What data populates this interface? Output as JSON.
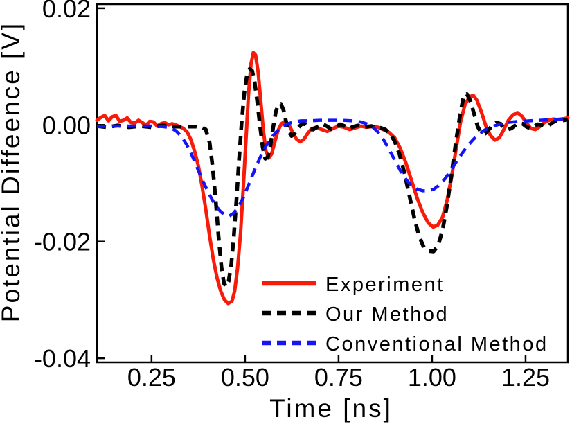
{
  "figure": {
    "background": "#ffffff",
    "frame_color": "#000000"
  },
  "chart_data": {
    "type": "line",
    "title": "",
    "xlabel": "Time [ns]",
    "ylabel": "Potential Diffeence [V]",
    "xlim": [
      0.104,
      1.363
    ],
    "ylim": [
      -0.0407,
      0.0207
    ],
    "x_ticks": [
      0.25,
      0.5,
      0.75,
      1.0,
      1.25
    ],
    "x_tick_labels": [
      "0.25",
      "0.50",
      "0.75",
      "1.00",
      "1.25"
    ],
    "y_ticks": [
      0.02,
      0.0,
      -0.02,
      -0.04
    ],
    "y_tick_labels": [
      "0.02",
      "0.00",
      "-0.02",
      "-0.04"
    ],
    "grid": false,
    "legend_position": "inside lower right",
    "series": [
      {
        "name": "Experiment",
        "color": "#f81b0a",
        "style": "solid",
        "points": [
          [
            0.104,
            0.0008
          ],
          [
            0.115,
            0.0013
          ],
          [
            0.125,
            0.0016
          ],
          [
            0.135,
            0.0007
          ],
          [
            0.145,
            0.0014
          ],
          [
            0.155,
            0.0016
          ],
          [
            0.165,
            0.0006
          ],
          [
            0.175,
            0.0008
          ],
          [
            0.185,
            0.0012
          ],
          [
            0.195,
            0.0004
          ],
          [
            0.205,
            0.0003
          ],
          [
            0.215,
            0.0008
          ],
          [
            0.225,
            0.0004
          ],
          [
            0.235,
            -0.0001
          ],
          [
            0.245,
            0.0006
          ],
          [
            0.255,
            0.0005
          ],
          [
            0.265,
            -0.0002
          ],
          [
            0.275,
            0.0002
          ],
          [
            0.285,
            0.0004
          ],
          [
            0.295,
            0.0
          ],
          [
            0.305,
            0.0002
          ],
          [
            0.315,
            0.0
          ],
          [
            0.325,
            -0.0003
          ],
          [
            0.335,
            -0.0006
          ],
          [
            0.345,
            -0.0012
          ],
          [
            0.355,
            -0.0025
          ],
          [
            0.365,
            -0.0045
          ],
          [
            0.375,
            -0.007
          ],
          [
            0.385,
            -0.0105
          ],
          [
            0.395,
            -0.0145
          ],
          [
            0.405,
            -0.019
          ],
          [
            0.415,
            -0.023
          ],
          [
            0.425,
            -0.0262
          ],
          [
            0.435,
            -0.0285
          ],
          [
            0.445,
            -0.03
          ],
          [
            0.455,
            -0.0306
          ],
          [
            0.465,
            -0.0302
          ],
          [
            0.472,
            -0.0285
          ],
          [
            0.48,
            -0.0245
          ],
          [
            0.488,
            -0.0185
          ],
          [
            0.495,
            -0.011
          ],
          [
            0.502,
            -0.003
          ],
          [
            0.509,
            0.005
          ],
          [
            0.516,
            0.0105
          ],
          [
            0.522,
            0.0124
          ],
          [
            0.528,
            0.012
          ],
          [
            0.535,
            0.009
          ],
          [
            0.542,
            0.004
          ],
          [
            0.549,
            -0.001
          ],
          [
            0.556,
            -0.0045
          ],
          [
            0.563,
            -0.0057
          ],
          [
            0.571,
            -0.005
          ],
          [
            0.579,
            -0.003
          ],
          [
            0.588,
            -0.001
          ],
          [
            0.597,
            0.0002
          ],
          [
            0.607,
            0.0006
          ],
          [
            0.617,
            0.0
          ],
          [
            0.627,
            -0.0012
          ],
          [
            0.637,
            -0.0024
          ],
          [
            0.647,
            -0.0029
          ],
          [
            0.657,
            -0.0025
          ],
          [
            0.667,
            -0.0015
          ],
          [
            0.677,
            -0.0007
          ],
          [
            0.69,
            -0.0004
          ],
          [
            0.705,
            -0.0008
          ],
          [
            0.72,
            -0.0011
          ],
          [
            0.735,
            -0.0006
          ],
          [
            0.75,
            -0.0002
          ],
          [
            0.765,
            -0.0004
          ],
          [
            0.78,
            -0.0008
          ],
          [
            0.795,
            -0.0005
          ],
          [
            0.81,
            -0.0002
          ],
          [
            0.825,
            -0.0004
          ],
          [
            0.84,
            -0.0003
          ],
          [
            0.855,
            -0.0004
          ],
          [
            0.87,
            -0.0008
          ],
          [
            0.885,
            -0.0013
          ],
          [
            0.9,
            -0.0022
          ],
          [
            0.915,
            -0.004
          ],
          [
            0.93,
            -0.0065
          ],
          [
            0.945,
            -0.0095
          ],
          [
            0.96,
            -0.0125
          ],
          [
            0.975,
            -0.015
          ],
          [
            0.99,
            -0.0168
          ],
          [
            1.003,
            -0.0175
          ],
          [
            1.015,
            -0.0172
          ],
          [
            1.028,
            -0.0158
          ],
          [
            1.04,
            -0.013
          ],
          [
            1.052,
            -0.009
          ],
          [
            1.064,
            -0.0042
          ],
          [
            1.076,
            0.0005
          ],
          [
            1.088,
            0.0035
          ],
          [
            1.1,
            0.0048
          ],
          [
            1.11,
            0.0051
          ],
          [
            1.12,
            0.0042
          ],
          [
            1.132,
            0.0022
          ],
          [
            1.144,
            -0.0002
          ],
          [
            1.156,
            -0.0018
          ],
          [
            1.168,
            -0.0026
          ],
          [
            1.18,
            -0.0022
          ],
          [
            1.192,
            -0.0008
          ],
          [
            1.204,
            0.0008
          ],
          [
            1.216,
            0.0017
          ],
          [
            1.228,
            0.0021
          ],
          [
            1.24,
            0.0015
          ],
          [
            1.252,
            0.0004
          ],
          [
            1.264,
            -0.0006
          ],
          [
            1.276,
            -0.0008
          ],
          [
            1.288,
            -0.0003
          ],
          [
            1.3,
            0.0004
          ],
          [
            1.312,
            0.0008
          ],
          [
            1.324,
            0.001
          ],
          [
            1.336,
            0.0009
          ],
          [
            1.348,
            0.001
          ],
          [
            1.363,
            0.0012
          ]
        ]
      },
      {
        "name": "Our Method",
        "color": "#000000",
        "style": "dashed",
        "points": [
          [
            0.104,
            -0.0002
          ],
          [
            0.13,
            -0.0004
          ],
          [
            0.16,
            -0.0001
          ],
          [
            0.19,
            -0.0004
          ],
          [
            0.22,
            -0.0002
          ],
          [
            0.25,
            -0.0004
          ],
          [
            0.28,
            -0.0001
          ],
          [
            0.31,
            -0.0003
          ],
          [
            0.34,
            -0.0003
          ],
          [
            0.37,
            -0.0003
          ],
          [
            0.385,
            -0.0004
          ],
          [
            0.395,
            -0.0008
          ],
          [
            0.405,
            -0.003
          ],
          [
            0.413,
            -0.007
          ],
          [
            0.421,
            -0.0125
          ],
          [
            0.429,
            -0.019
          ],
          [
            0.437,
            -0.0245
          ],
          [
            0.444,
            -0.0272
          ],
          [
            0.45,
            -0.0277
          ],
          [
            0.456,
            -0.0268
          ],
          [
            0.463,
            -0.024
          ],
          [
            0.47,
            -0.019
          ],
          [
            0.477,
            -0.0128
          ],
          [
            0.484,
            -0.006
          ],
          [
            0.491,
            0.0005
          ],
          [
            0.498,
            0.0055
          ],
          [
            0.505,
            0.0085
          ],
          [
            0.512,
            0.0096
          ],
          [
            0.519,
            0.0093
          ],
          [
            0.526,
            0.0072
          ],
          [
            0.533,
            0.0038
          ],
          [
            0.54,
            -0.0002
          ],
          [
            0.547,
            -0.0038
          ],
          [
            0.554,
            -0.0058
          ],
          [
            0.561,
            -0.0055
          ],
          [
            0.568,
            -0.0035
          ],
          [
            0.575,
            -0.0005
          ],
          [
            0.582,
            0.0022
          ],
          [
            0.589,
            0.0035
          ],
          [
            0.596,
            0.0036
          ],
          [
            0.603,
            0.0025
          ],
          [
            0.61,
            0.0005
          ],
          [
            0.617,
            -0.0012
          ],
          [
            0.624,
            -0.0019
          ],
          [
            0.632,
            -0.0015
          ],
          [
            0.642,
            -0.0005
          ],
          [
            0.652,
            0.0002
          ],
          [
            0.662,
            0.0001
          ],
          [
            0.672,
            -0.0006
          ],
          [
            0.682,
            -0.0008
          ],
          [
            0.694,
            -0.0003
          ],
          [
            0.706,
            0.0002
          ],
          [
            0.718,
            -0.0002
          ],
          [
            0.73,
            -0.0007
          ],
          [
            0.742,
            -0.0004
          ],
          [
            0.754,
            0.0001
          ],
          [
            0.766,
            -0.0002
          ],
          [
            0.778,
            -0.0006
          ],
          [
            0.79,
            -0.0003
          ],
          [
            0.802,
            -0.0001
          ],
          [
            0.814,
            -0.0004
          ],
          [
            0.826,
            -0.0003
          ],
          [
            0.838,
            -0.0002
          ],
          [
            0.85,
            -0.0005
          ],
          [
            0.862,
            -0.0005
          ],
          [
            0.875,
            -0.0008
          ],
          [
            0.888,
            -0.0015
          ],
          [
            0.9,
            -0.0028
          ],
          [
            0.913,
            -0.005
          ],
          [
            0.926,
            -0.0082
          ],
          [
            0.939,
            -0.012
          ],
          [
            0.952,
            -0.0158
          ],
          [
            0.965,
            -0.019
          ],
          [
            0.978,
            -0.021
          ],
          [
            0.991,
            -0.0216
          ],
          [
            1.004,
            -0.0217
          ],
          [
            1.016,
            -0.0207
          ],
          [
            1.028,
            -0.018
          ],
          [
            1.04,
            -0.0138
          ],
          [
            1.052,
            -0.0085
          ],
          [
            1.064,
            -0.0028
          ],
          [
            1.076,
            0.0022
          ],
          [
            1.085,
            0.005
          ],
          [
            1.093,
            0.0053
          ],
          [
            1.102,
            0.0042
          ],
          [
            1.112,
            0.002
          ],
          [
            1.122,
            -0.0003
          ],
          [
            1.132,
            -0.0014
          ],
          [
            1.142,
            -0.0015
          ],
          [
            1.152,
            -0.0008
          ],
          [
            1.162,
            0.0
          ],
          [
            1.172,
            0.0004
          ],
          [
            1.182,
            0.0002
          ],
          [
            1.192,
            -0.0004
          ],
          [
            1.202,
            -0.0008
          ],
          [
            1.212,
            -0.0006
          ],
          [
            1.222,
            -0.0001
          ],
          [
            1.232,
            0.0003
          ],
          [
            1.242,
            0.0002
          ],
          [
            1.252,
            -0.0003
          ],
          [
            1.262,
            -0.0006
          ],
          [
            1.272,
            -0.0003
          ],
          [
            1.282,
            0.0001
          ],
          [
            1.292,
            0.0
          ],
          [
            1.302,
            -0.0003
          ],
          [
            1.312,
            -0.0001
          ],
          [
            1.322,
            0.0004
          ],
          [
            1.332,
            0.0007
          ],
          [
            1.342,
            0.0008
          ],
          [
            1.352,
            0.0008
          ],
          [
            1.363,
            0.0009
          ]
        ]
      },
      {
        "name": "Conventional Method",
        "color": "#1414f5",
        "style": "dashed",
        "points": [
          [
            0.104,
            -0.0003
          ],
          [
            0.15,
            -0.0002
          ],
          [
            0.2,
            -0.0002
          ],
          [
            0.25,
            -0.0002
          ],
          [
            0.28,
            -0.0003
          ],
          [
            0.3,
            -0.0005
          ],
          [
            0.315,
            -0.001
          ],
          [
            0.33,
            -0.002
          ],
          [
            0.345,
            -0.0035
          ],
          [
            0.36,
            -0.0055
          ],
          [
            0.375,
            -0.0078
          ],
          [
            0.39,
            -0.01
          ],
          [
            0.405,
            -0.012
          ],
          [
            0.42,
            -0.0137
          ],
          [
            0.435,
            -0.0149
          ],
          [
            0.448,
            -0.0155
          ],
          [
            0.458,
            -0.0156
          ],
          [
            0.468,
            -0.0152
          ],
          [
            0.48,
            -0.0143
          ],
          [
            0.495,
            -0.0125
          ],
          [
            0.51,
            -0.0102
          ],
          [
            0.525,
            -0.0078
          ],
          [
            0.54,
            -0.0056
          ],
          [
            0.555,
            -0.0037
          ],
          [
            0.57,
            -0.0022
          ],
          [
            0.585,
            -0.0011
          ],
          [
            0.6,
            -0.0003
          ],
          [
            0.615,
            0.0002
          ],
          [
            0.63,
            0.0005
          ],
          [
            0.65,
            0.0007
          ],
          [
            0.67,
            0.0007
          ],
          [
            0.7,
            0.0008
          ],
          [
            0.73,
            0.0008
          ],
          [
            0.76,
            0.0008
          ],
          [
            0.79,
            0.0007
          ],
          [
            0.81,
            0.0005
          ],
          [
            0.825,
            0.0002
          ],
          [
            0.84,
            -0.0003
          ],
          [
            0.855,
            -0.0012
          ],
          [
            0.87,
            -0.0025
          ],
          [
            0.885,
            -0.0042
          ],
          [
            0.9,
            -0.006
          ],
          [
            0.915,
            -0.0078
          ],
          [
            0.93,
            -0.0093
          ],
          [
            0.945,
            -0.0104
          ],
          [
            0.96,
            -0.011
          ],
          [
            0.975,
            -0.0113
          ],
          [
            0.99,
            -0.0113
          ],
          [
            1.005,
            -0.011
          ],
          [
            1.02,
            -0.0103
          ],
          [
            1.035,
            -0.0092
          ],
          [
            1.05,
            -0.0078
          ],
          [
            1.065,
            -0.0063
          ],
          [
            1.08,
            -0.0049
          ],
          [
            1.095,
            -0.0036
          ],
          [
            1.11,
            -0.0025
          ],
          [
            1.125,
            -0.0016
          ],
          [
            1.14,
            -0.0009
          ],
          [
            1.155,
            -0.0004
          ],
          [
            1.17,
            -0.0001
          ],
          [
            1.185,
            0.0002
          ],
          [
            1.2,
            0.0004
          ],
          [
            1.23,
            0.0006
          ],
          [
            1.26,
            0.0007
          ],
          [
            1.29,
            0.0008
          ],
          [
            1.32,
            0.0009
          ],
          [
            1.345,
            0.001
          ],
          [
            1.363,
            0.0013
          ]
        ]
      }
    ]
  }
}
